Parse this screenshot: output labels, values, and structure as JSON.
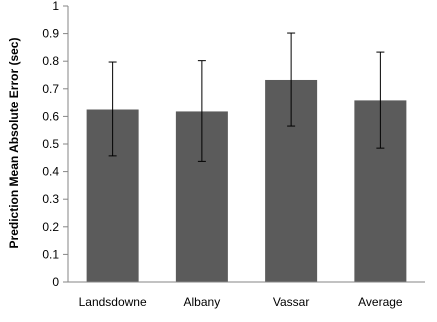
{
  "chart_data": {
    "type": "bar",
    "title": "",
    "xlabel": "",
    "ylabel": "Prediction Mean Absolute Error (sec)",
    "categories": [
      "Landsdowne",
      "Albany",
      "Vassar",
      "Average"
    ],
    "values": [
      0.625,
      0.618,
      0.732,
      0.658
    ],
    "error_low": [
      0.457,
      0.437,
      0.565,
      0.485
    ],
    "error_high": [
      0.797,
      0.802,
      0.902,
      0.833
    ],
    "ylim": [
      0,
      1
    ],
    "yticks": [
      "0",
      "0.1",
      "0.2",
      "0.3",
      "0.4",
      "0.5",
      "0.6",
      "0.7",
      "0.8",
      "0.9",
      "1"
    ],
    "grid": false,
    "legend": "none",
    "colors": {
      "bar": "#5b5b5b",
      "axis": "#868686",
      "error_bar": "#000000"
    }
  }
}
